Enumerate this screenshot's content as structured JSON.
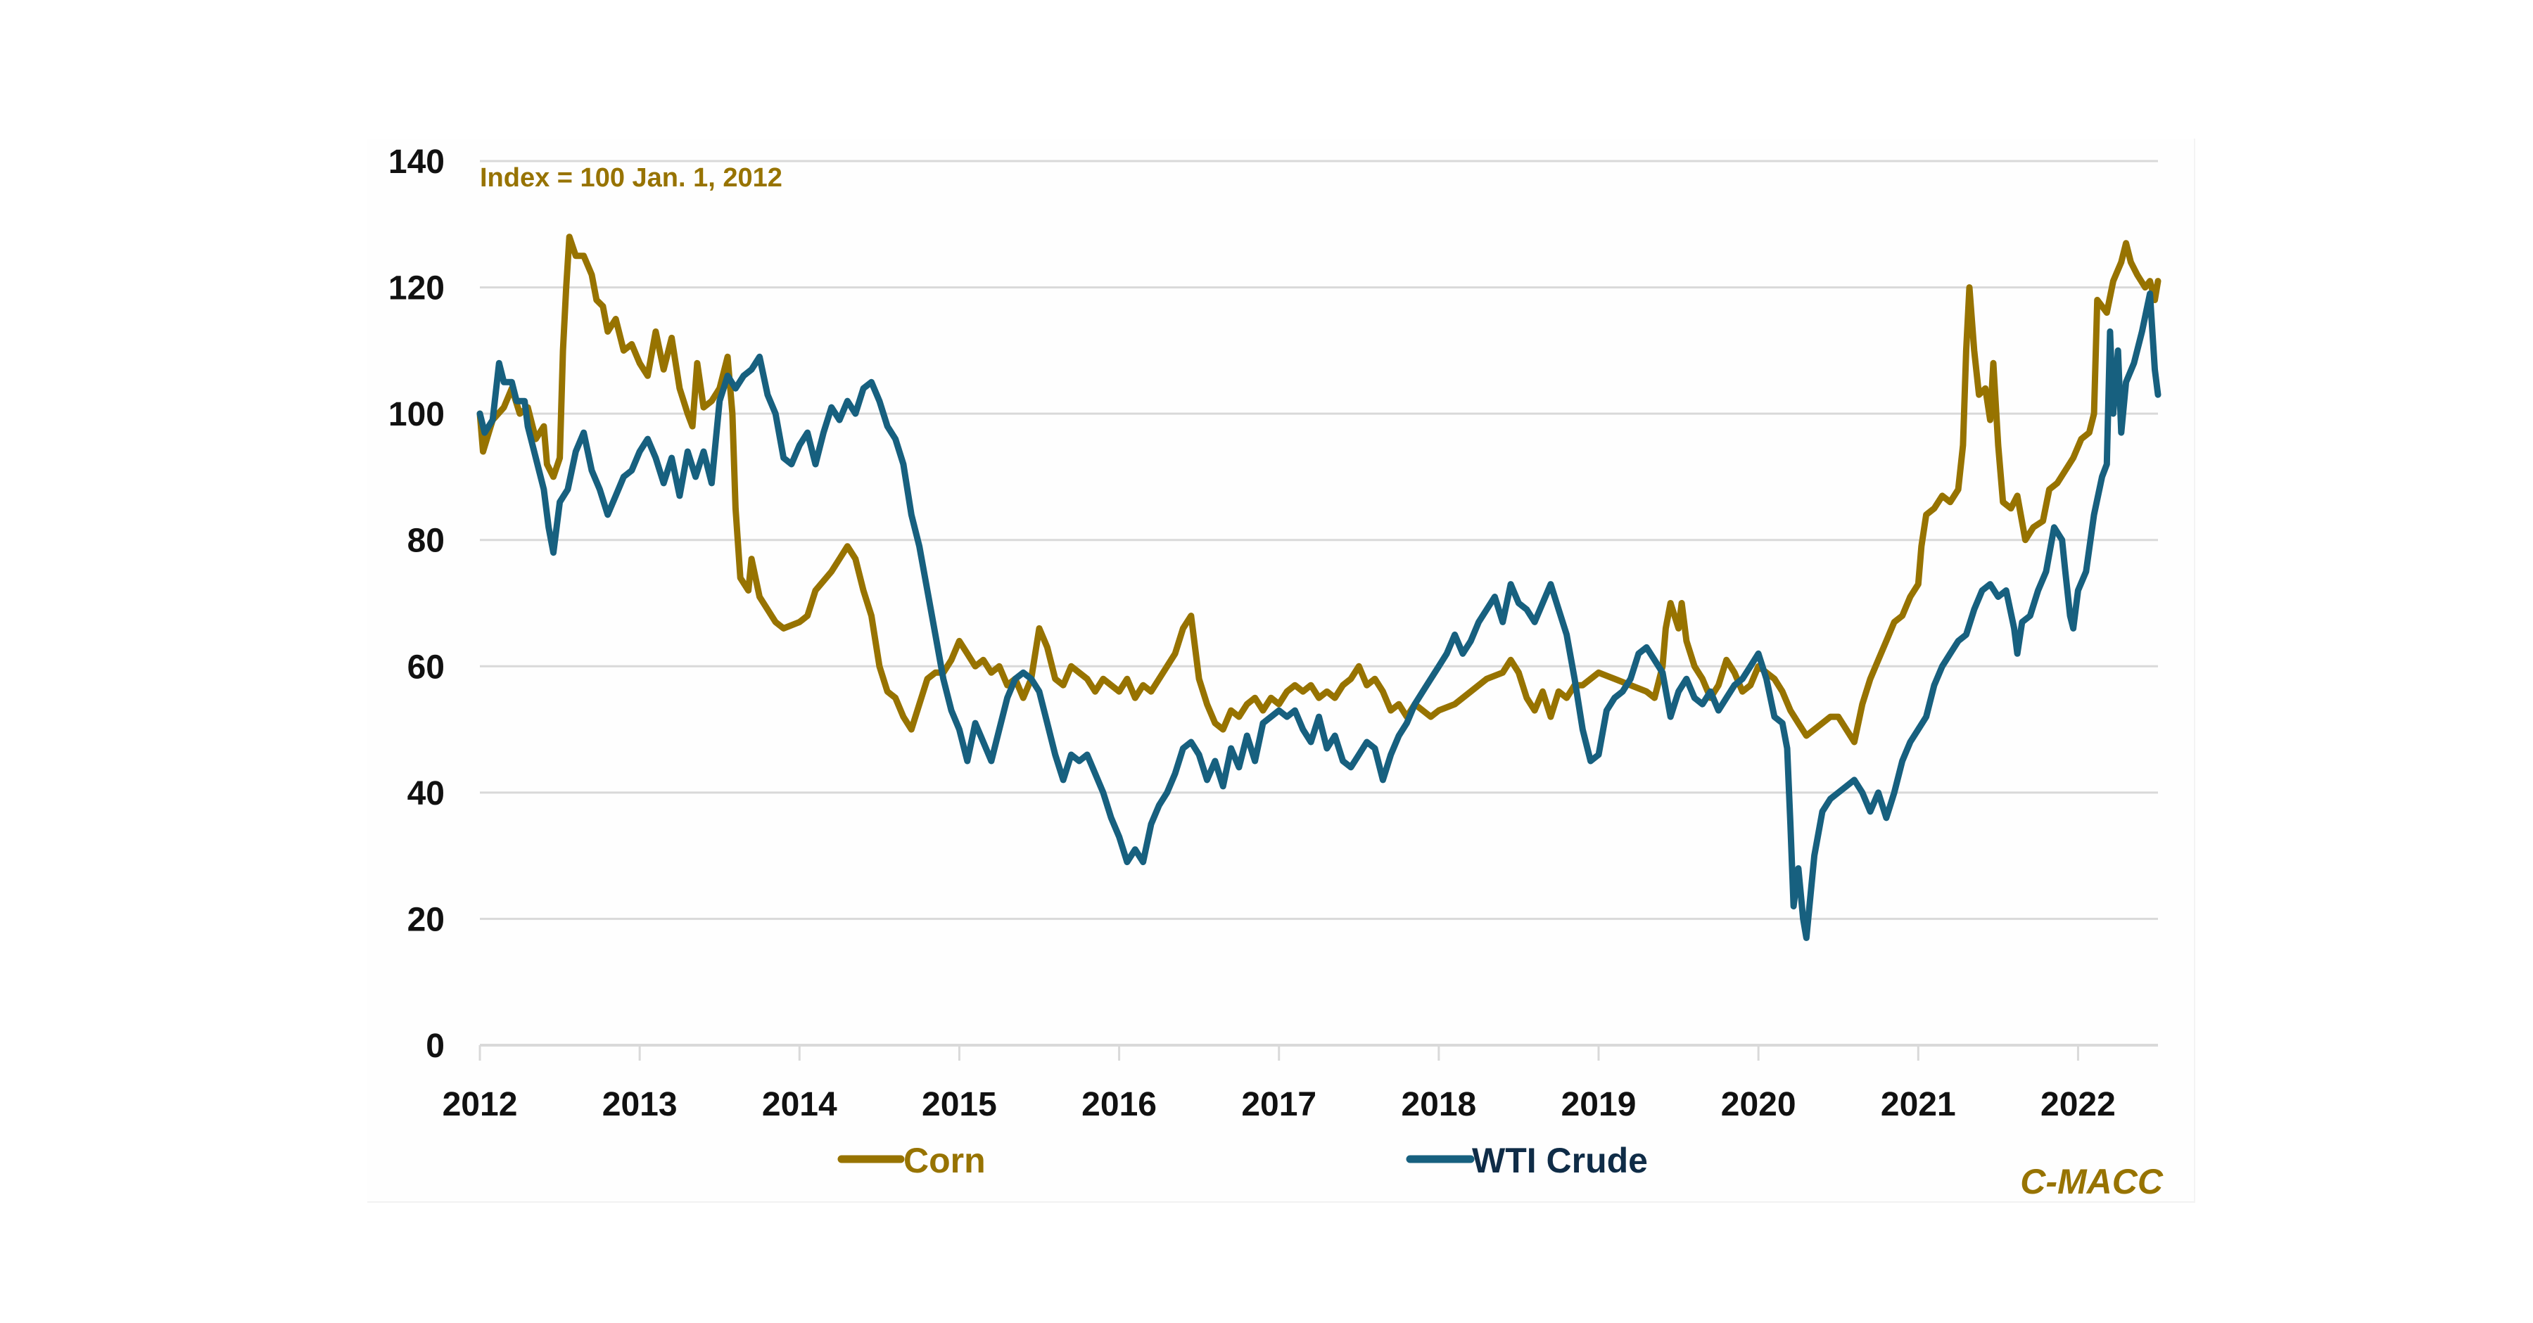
{
  "chart_data": {
    "type": "line",
    "title": "",
    "annotation": "Index = 100 Jan. 1, 2012",
    "source_label": "C-MACC",
    "xlabel": "",
    "ylabel": "",
    "xlim": [
      2012,
      2022.5
    ],
    "ylim": [
      0,
      140
    ],
    "y_ticks": [
      0,
      20,
      40,
      60,
      80,
      100,
      120,
      140
    ],
    "x_ticks": [
      2012,
      2013,
      2014,
      2015,
      2016,
      2017,
      2018,
      2019,
      2020,
      2021,
      2022
    ],
    "x_tick_labels": [
      "2012",
      "2013",
      "2014",
      "2015",
      "2016",
      "2017",
      "2018",
      "2019",
      "2020",
      "2021",
      "2022"
    ],
    "y_tick_labels": [
      "0",
      "20",
      "40",
      "60",
      "80",
      "100",
      "120",
      "140"
    ],
    "grid": "horizontal",
    "legend_position": "bottom",
    "series": [
      {
        "name": "Corn",
        "color": "#977300",
        "x": [
          2012.0,
          2012.02,
          2012.08,
          2012.15,
          2012.2,
          2012.25,
          2012.3,
          2012.35,
          2012.4,
          2012.42,
          2012.46,
          2012.5,
          2012.52,
          2012.54,
          2012.56,
          2012.6,
          2012.65,
          2012.7,
          2012.73,
          2012.77,
          2012.8,
          2012.85,
          2012.9,
          2012.95,
          2013.0,
          2013.05,
          2013.1,
          2013.15,
          2013.2,
          2013.25,
          2013.3,
          2013.33,
          2013.36,
          2013.4,
          2013.45,
          2013.5,
          2013.55,
          2013.58,
          2013.6,
          2013.63,
          2013.68,
          2013.7,
          2013.75,
          2013.8,
          2013.85,
          2013.9,
          2014.0,
          2014.05,
          2014.1,
          2014.2,
          2014.25,
          2014.3,
          2014.35,
          2014.4,
          2014.45,
          2014.5,
          2014.55,
          2014.6,
          2014.65,
          2014.7,
          2014.75,
          2014.8,
          2014.85,
          2014.9,
          2014.95,
          2015.0,
          2015.05,
          2015.1,
          2015.15,
          2015.2,
          2015.25,
          2015.3,
          2015.35,
          2015.4,
          2015.45,
          2015.5,
          2015.55,
          2015.6,
          2015.65,
          2015.7,
          2015.75,
          2015.8,
          2015.85,
          2015.9,
          2015.95,
          2016.0,
          2016.05,
          2016.1,
          2016.15,
          2016.2,
          2016.25,
          2016.3,
          2016.35,
          2016.4,
          2016.45,
          2016.5,
          2016.55,
          2016.6,
          2016.65,
          2016.7,
          2016.75,
          2016.8,
          2016.85,
          2016.9,
          2016.95,
          2017.0,
          2017.05,
          2017.1,
          2017.15,
          2017.2,
          2017.25,
          2017.3,
          2017.35,
          2017.4,
          2017.45,
          2017.5,
          2017.55,
          2017.6,
          2017.65,
          2017.7,
          2017.75,
          2017.8,
          2017.85,
          2017.9,
          2017.95,
          2018.0,
          2018.1,
          2018.2,
          2018.3,
          2018.4,
          2018.45,
          2018.5,
          2018.55,
          2018.6,
          2018.65,
          2018.7,
          2018.75,
          2018.8,
          2018.85,
          2018.9,
          2019.0,
          2019.1,
          2019.2,
          2019.3,
          2019.35,
          2019.4,
          2019.42,
          2019.45,
          2019.5,
          2019.52,
          2019.55,
          2019.6,
          2019.65,
          2019.7,
          2019.75,
          2019.8,
          2019.85,
          2019.9,
          2019.95,
          2020.0,
          2020.05,
          2020.1,
          2020.15,
          2020.2,
          2020.25,
          2020.3,
          2020.35,
          2020.4,
          2020.45,
          2020.5,
          2020.55,
          2020.6,
          2020.65,
          2020.7,
          2020.75,
          2020.8,
          2020.85,
          2020.9,
          2020.95,
          2021.0,
          2021.02,
          2021.05,
          2021.1,
          2021.15,
          2021.2,
          2021.25,
          2021.28,
          2021.3,
          2021.32,
          2021.35,
          2021.38,
          2021.42,
          2021.45,
          2021.47,
          2021.5,
          2021.53,
          2021.58,
          2021.62,
          2021.67,
          2021.72,
          2021.78,
          2021.82,
          2021.87,
          2021.92,
          2021.97,
          2022.02,
          2022.07,
          2022.1,
          2022.12,
          2022.15,
          2022.18,
          2022.22,
          2022.27,
          2022.3,
          2022.33,
          2022.37,
          2022.42,
          2022.45,
          2022.48,
          2022.5
        ],
        "values": [
          100,
          94,
          99,
          101,
          104,
          100,
          101,
          96,
          98,
          92,
          90,
          93,
          110,
          120,
          128,
          125,
          125,
          122,
          118,
          117,
          113,
          115,
          110,
          111,
          108,
          106,
          113,
          107,
          112,
          104,
          100,
          98,
          108,
          101,
          102,
          104,
          109,
          100,
          85,
          74,
          72,
          77,
          71,
          69,
          67,
          66,
          67,
          68,
          72,
          75,
          77,
          79,
          77,
          72,
          68,
          60,
          56,
          55,
          52,
          50,
          54,
          58,
          59,
          59,
          61,
          64,
          62,
          60,
          61,
          59,
          60,
          57,
          58,
          55,
          58,
          66,
          63,
          58,
          57,
          60,
          59,
          58,
          56,
          58,
          57,
          56,
          58,
          55,
          57,
          56,
          58,
          60,
          62,
          66,
          68,
          58,
          54,
          51,
          50,
          53,
          52,
          54,
          55,
          53,
          55,
          54,
          56,
          57,
          56,
          57,
          55,
          56,
          55,
          57,
          58,
          60,
          57,
          58,
          56,
          53,
          54,
          52,
          54,
          53,
          52,
          53,
          54,
          56,
          58,
          59,
          61,
          59,
          55,
          53,
          56,
          52,
          56,
          55,
          57,
          57,
          59,
          58,
          57,
          56,
          55,
          60,
          66,
          70,
          66,
          70,
          64,
          60,
          58,
          55,
          57,
          61,
          59,
          56,
          57,
          60,
          59,
          58,
          56,
          53,
          51,
          49,
          50,
          51,
          52,
          52,
          50,
          48,
          54,
          58,
          61,
          64,
          67,
          68,
          71,
          73,
          79,
          84,
          85,
          87,
          86,
          88,
          95,
          110,
          120,
          110,
          103,
          104,
          99,
          108,
          95,
          86,
          85,
          87,
          80,
          82,
          83,
          88,
          89,
          91,
          93,
          96,
          97,
          100,
          118,
          117,
          116,
          121,
          124,
          127,
          124,
          122,
          120,
          121,
          118,
          121
        ]
      },
      {
        "name": "WTI Crude",
        "color": "#17607f",
        "legend_text_color": "#0f2c47",
        "x": [
          2012.0,
          2012.03,
          2012.08,
          2012.12,
          2012.15,
          2012.2,
          2012.23,
          2012.28,
          2012.3,
          2012.35,
          2012.4,
          2012.43,
          2012.46,
          2012.5,
          2012.55,
          2012.6,
          2012.65,
          2012.7,
          2012.75,
          2012.8,
          2012.85,
          2012.9,
          2012.95,
          2013.0,
          2013.05,
          2013.1,
          2013.15,
          2013.2,
          2013.25,
          2013.3,
          2013.35,
          2013.4,
          2013.45,
          2013.5,
          2013.55,
          2013.6,
          2013.65,
          2013.7,
          2013.75,
          2013.8,
          2013.85,
          2013.9,
          2013.95,
          2014.0,
          2014.05,
          2014.1,
          2014.15,
          2014.2,
          2014.25,
          2014.3,
          2014.35,
          2014.4,
          2014.45,
          2014.5,
          2014.55,
          2014.6,
          2014.65,
          2014.7,
          2014.75,
          2014.8,
          2014.85,
          2014.9,
          2014.95,
          2015.0,
          2015.05,
          2015.1,
          2015.15,
          2015.2,
          2015.25,
          2015.3,
          2015.35,
          2015.4,
          2015.45,
          2015.5,
          2015.55,
          2015.6,
          2015.65,
          2015.7,
          2015.75,
          2015.8,
          2015.85,
          2015.9,
          2015.95,
          2016.0,
          2016.05,
          2016.1,
          2016.15,
          2016.2,
          2016.25,
          2016.3,
          2016.35,
          2016.4,
          2016.45,
          2016.5,
          2016.55,
          2016.6,
          2016.65,
          2016.7,
          2016.75,
          2016.8,
          2016.85,
          2016.9,
          2016.95,
          2017.0,
          2017.05,
          2017.1,
          2017.15,
          2017.2,
          2017.25,
          2017.3,
          2017.35,
          2017.4,
          2017.45,
          2017.5,
          2017.55,
          2017.6,
          2017.65,
          2017.7,
          2017.75,
          2017.8,
          2017.85,
          2017.9,
          2017.95,
          2018.0,
          2018.05,
          2018.1,
          2018.15,
          2018.2,
          2018.25,
          2018.3,
          2018.35,
          2018.4,
          2018.45,
          2018.5,
          2018.55,
          2018.6,
          2018.65,
          2018.7,
          2018.75,
          2018.8,
          2018.85,
          2018.9,
          2018.95,
          2019.0,
          2019.05,
          2019.1,
          2019.15,
          2019.2,
          2019.25,
          2019.3,
          2019.35,
          2019.4,
          2019.45,
          2019.5,
          2019.55,
          2019.6,
          2019.65,
          2019.7,
          2019.75,
          2019.8,
          2019.85,
          2019.9,
          2019.95,
          2020.0,
          2020.05,
          2020.1,
          2020.15,
          2020.18,
          2020.2,
          2020.22,
          2020.25,
          2020.28,
          2020.3,
          2020.35,
          2020.4,
          2020.45,
          2020.5,
          2020.55,
          2020.6,
          2020.65,
          2020.7,
          2020.75,
          2020.8,
          2020.85,
          2020.9,
          2020.95,
          2021.0,
          2021.05,
          2021.1,
          2021.15,
          2021.2,
          2021.25,
          2021.3,
          2021.35,
          2021.4,
          2021.45,
          2021.5,
          2021.55,
          2021.6,
          2021.62,
          2021.65,
          2021.7,
          2021.75,
          2021.8,
          2021.85,
          2021.9,
          2021.92,
          2021.95,
          2021.97,
          2022.0,
          2022.05,
          2022.1,
          2022.15,
          2022.18,
          2022.2,
          2022.22,
          2022.25,
          2022.27,
          2022.3,
          2022.35,
          2022.4,
          2022.45,
          2022.48,
          2022.5
        ],
        "values": [
          100,
          97,
          99,
          108,
          105,
          105,
          102,
          102,
          98,
          93,
          88,
          82,
          78,
          86,
          88,
          94,
          97,
          91,
          88,
          84,
          87,
          90,
          91,
          94,
          96,
          93,
          89,
          93,
          87,
          94,
          90,
          94,
          89,
          102,
          106,
          104,
          106,
          107,
          109,
          103,
          100,
          93,
          92,
          95,
          97,
          92,
          97,
          101,
          99,
          102,
          100,
          104,
          105,
          102,
          98,
          96,
          92,
          84,
          79,
          72,
          65,
          58,
          53,
          50,
          45,
          51,
          48,
          45,
          50,
          55,
          58,
          59,
          58,
          56,
          51,
          46,
          42,
          46,
          45,
          46,
          43,
          40,
          36,
          33,
          29,
          31,
          29,
          35,
          38,
          40,
          43,
          47,
          48,
          46,
          42,
          45,
          41,
          47,
          44,
          49,
          45,
          51,
          52,
          53,
          52,
          53,
          50,
          48,
          52,
          47,
          49,
          45,
          44,
          46,
          48,
          47,
          42,
          46,
          49,
          51,
          54,
          56,
          58,
          60,
          62,
          65,
          62,
          64,
          67,
          69,
          71,
          67,
          73,
          70,
          69,
          67,
          70,
          73,
          69,
          65,
          58,
          50,
          45,
          46,
          53,
          55,
          56,
          58,
          62,
          63,
          61,
          59,
          52,
          56,
          58,
          55,
          54,
          56,
          53,
          55,
          57,
          58,
          60,
          62,
          58,
          52,
          51,
          47,
          35,
          22,
          28,
          20,
          17,
          30,
          37,
          39,
          40,
          41,
          42,
          40,
          37,
          40,
          36,
          40,
          45,
          48,
          50,
          52,
          57,
          60,
          62,
          64,
          65,
          69,
          72,
          73,
          71,
          72,
          66,
          62,
          67,
          68,
          72,
          75,
          82,
          80,
          75,
          68,
          66,
          72,
          75,
          84,
          90,
          92,
          113,
          100,
          110,
          97,
          105,
          108,
          113,
          119,
          107,
          103
        ]
      }
    ]
  }
}
